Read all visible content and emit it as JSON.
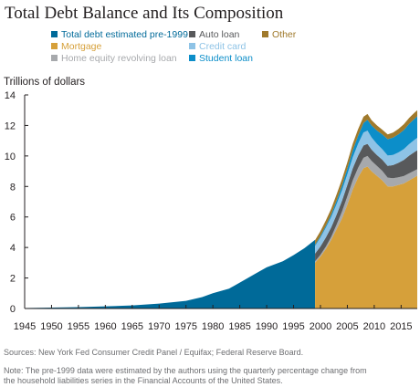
{
  "chart_data": {
    "type": "area",
    "title": "Total Debt Balance and Its Composition",
    "ylabel": "Trillions of dollars",
    "xlabel": "",
    "xlim": [
      1945,
      2018
    ],
    "ylim": [
      0,
      14
    ],
    "yticks": [
      0,
      2,
      4,
      6,
      8,
      10,
      12,
      14
    ],
    "xticks": [
      1945,
      1950,
      1955,
      1960,
      1965,
      1970,
      1975,
      1980,
      1985,
      1990,
      1995,
      2000,
      2005,
      2010,
      2015
    ],
    "grid": false,
    "legend_position": "top",
    "legend": [
      {
        "label": "Total debt estimated pre-1999",
        "color": "#006a99"
      },
      {
        "label": "Auto loan",
        "color": "#58595b"
      },
      {
        "label": "Other",
        "color": "#a07a2c"
      },
      {
        "label": "Mortgage",
        "color": "#d6a03a"
      },
      {
        "label": "Credit card",
        "color": "#8ec3e6"
      },
      {
        "label": "Home equity revolving loan",
        "color": "#a7a9ac"
      },
      {
        "label": "Student loan",
        "color": "#0c8ec9"
      }
    ],
    "pre1999": {
      "name": "Total debt estimated pre-1999",
      "color": "#006a99",
      "x": [
        1945,
        1950,
        1955,
        1960,
        1965,
        1970,
        1975,
        1978,
        1980,
        1983,
        1985,
        1988,
        1990,
        1993,
        1995,
        1997,
        1999
      ],
      "y": [
        0.03,
        0.06,
        0.09,
        0.14,
        0.2,
        0.32,
        0.5,
        0.75,
        1.0,
        1.3,
        1.7,
        2.3,
        2.7,
        3.1,
        3.5,
        3.95,
        4.5
      ]
    },
    "stack_order": [
      "Mortgage",
      "Home equity revolving loan",
      "Auto loan",
      "Credit card",
      "Student loan",
      "Other"
    ],
    "composition": {
      "x": [
        1999,
        2000,
        2001,
        2002,
        2003,
        2004,
        2005,
        2006,
        2007,
        2008,
        2008.75,
        2009.5,
        2010.5,
        2011.5,
        2012.5,
        2013.5,
        2014.5,
        2015.5,
        2016.5,
        2017.5,
        2018
      ],
      "series": [
        {
          "name": "Mortgage",
          "color": "#d6a03a",
          "values": [
            3.0,
            3.4,
            3.9,
            4.5,
            5.2,
            5.9,
            6.8,
            7.8,
            8.6,
            9.2,
            9.3,
            9.0,
            8.7,
            8.4,
            8.0,
            8.0,
            8.1,
            8.2,
            8.4,
            8.6,
            8.7
          ]
        },
        {
          "name": "Home equity revolving loan",
          "color": "#a7a9ac",
          "values": [
            0.1,
            0.12,
            0.15,
            0.2,
            0.3,
            0.45,
            0.55,
            0.6,
            0.62,
            0.68,
            0.7,
            0.68,
            0.65,
            0.62,
            0.58,
            0.54,
            0.5,
            0.48,
            0.46,
            0.44,
            0.43
          ]
        },
        {
          "name": "Auto loan",
          "color": "#58595b",
          "values": [
            0.5,
            0.55,
            0.6,
            0.62,
            0.65,
            0.7,
            0.75,
            0.78,
            0.8,
            0.81,
            0.79,
            0.74,
            0.71,
            0.73,
            0.77,
            0.86,
            0.95,
            1.06,
            1.16,
            1.22,
            1.24
          ]
        },
        {
          "name": "Credit card",
          "color": "#8ec3e6",
          "values": [
            0.5,
            0.58,
            0.65,
            0.68,
            0.69,
            0.7,
            0.7,
            0.73,
            0.78,
            0.85,
            0.87,
            0.8,
            0.73,
            0.69,
            0.68,
            0.67,
            0.68,
            0.71,
            0.76,
            0.8,
            0.82
          ]
        },
        {
          "name": "Student loan",
          "color": "#0c8ec9",
          "values": [
            0.08,
            0.1,
            0.12,
            0.16,
            0.23,
            0.3,
            0.37,
            0.45,
            0.52,
            0.62,
            0.71,
            0.78,
            0.88,
            0.97,
            1.07,
            1.13,
            1.19,
            1.25,
            1.33,
            1.38,
            1.41
          ]
        },
        {
          "name": "Other",
          "color": "#a07a2c",
          "values": [
            0.3,
            0.32,
            0.35,
            0.38,
            0.41,
            0.42,
            0.42,
            0.43,
            0.44,
            0.41,
            0.38,
            0.35,
            0.33,
            0.31,
            0.31,
            0.33,
            0.35,
            0.38,
            0.39,
            0.4,
            0.4
          ]
        }
      ]
    }
  },
  "footnotes": {
    "sources": "Sources: New York Fed Consumer Credit Panel / Equifax; Federal Reserve Board.",
    "note_line1": "Note: The pre-1999 data were estimated by the authors using the quarterly percentage change from",
    "note_line2": "the household liabilities series in the Financial Accounts of the United States."
  }
}
